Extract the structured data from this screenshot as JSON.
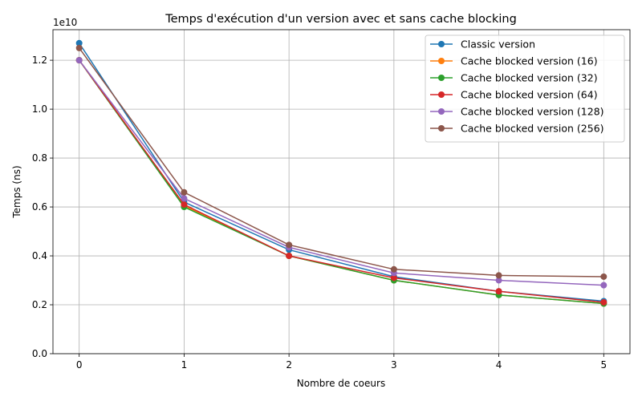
{
  "chart_data": {
    "type": "line",
    "title": "Temps d'exécution d'un version avec et sans cache blocking",
    "xlabel": "Nombre de coeurs",
    "ylabel": "Temps (ns)",
    "y_offset_label": "1e10",
    "y_scale_factor": 10000000000,
    "xlim": [
      -0.25,
      5.25
    ],
    "ylim": [
      0,
      13250000000
    ],
    "x_ticks": [
      0,
      1,
      2,
      3,
      4,
      5
    ],
    "x_tick_labels": [
      "0",
      "1",
      "2",
      "3",
      "4",
      "5"
    ],
    "y_ticks": [
      0,
      2000000000,
      4000000000,
      6000000000,
      8000000000,
      10000000000,
      12000000000
    ],
    "y_tick_labels": [
      "0.0",
      "0.2",
      "0.4",
      "0.6",
      "0.8",
      "1.0",
      "1.2"
    ],
    "grid": true,
    "legend_position": "top-right",
    "x": [
      0,
      1,
      2,
      3,
      4,
      5
    ],
    "series": [
      {
        "name": "Classic version",
        "color": "#1f77b4",
        "values": [
          12700000000,
          6200000000,
          4250000000,
          3150000000,
          2550000000,
          2150000000
        ]
      },
      {
        "name": "Cache blocked version (16)",
        "color": "#ff7f0e",
        "values": [
          12000000000,
          6050000000,
          4000000000,
          3000000000,
          2400000000,
          2050000000
        ]
      },
      {
        "name": "Cache blocked version (32)",
        "color": "#2ca02c",
        "values": [
          12000000000,
          6000000000,
          4000000000,
          3000000000,
          2400000000,
          2050000000
        ]
      },
      {
        "name": "Cache blocked version (64)",
        "color": "#d62728",
        "values": [
          12000000000,
          6100000000,
          4000000000,
          3100000000,
          2550000000,
          2100000000
        ]
      },
      {
        "name": "Cache blocked version (128)",
        "color": "#9467bd",
        "values": [
          12000000000,
          6350000000,
          4350000000,
          3300000000,
          3000000000,
          2800000000
        ]
      },
      {
        "name": "Cache blocked version (256)",
        "color": "#8c564b",
        "values": [
          12500000000,
          6600000000,
          4450000000,
          3450000000,
          3200000000,
          3150000000
        ]
      }
    ]
  }
}
